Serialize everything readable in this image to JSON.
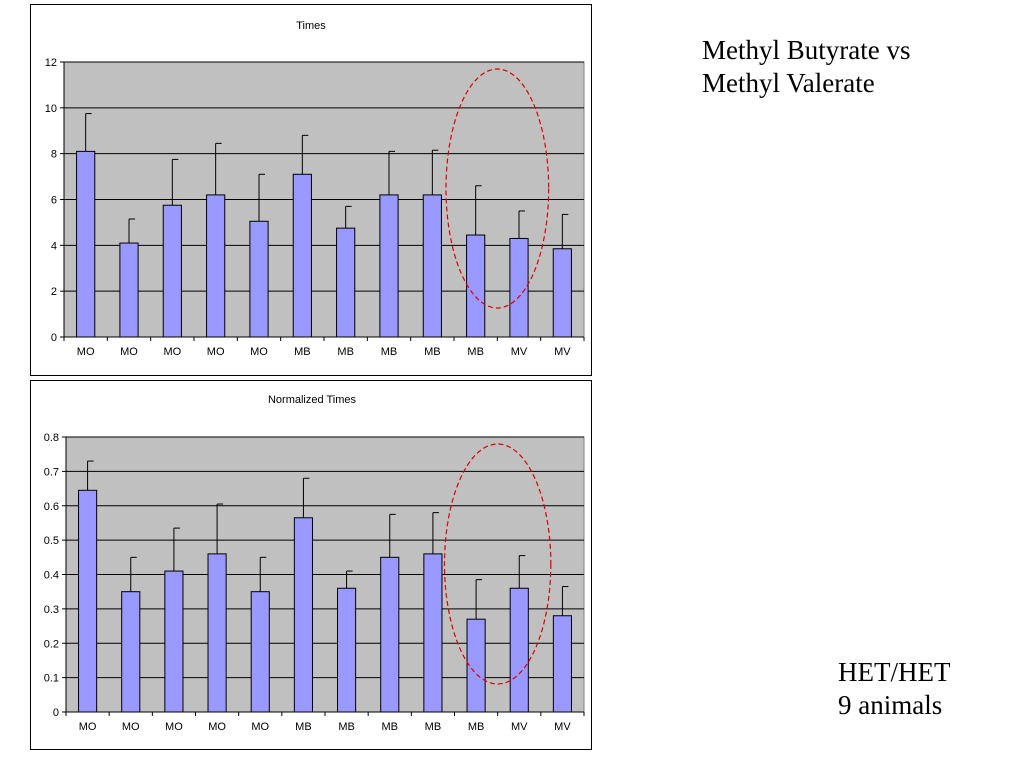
{
  "slide": {
    "title_line1": "Methyl Butyrate vs",
    "title_line2": "Methyl Valerate",
    "note_line1": "HET/HET",
    "note_line2": "9 animals"
  },
  "colors": {
    "bar_fill": "#9999ff",
    "plot_bg": "#c0c0c0",
    "grid": "#000000",
    "highlight": "#dd0000"
  },
  "chart_data": [
    {
      "type": "bar",
      "title": "Times",
      "categories": [
        "MO",
        "MO",
        "MO",
        "MO",
        "MO",
        "MB",
        "MB",
        "MB",
        "MB",
        "MB",
        "MV",
        "MV"
      ],
      "values": [
        8.1,
        4.1,
        5.75,
        6.2,
        5.05,
        7.1,
        4.75,
        6.2,
        6.2,
        4.45,
        4.3,
        3.85
      ],
      "error_upper": [
        1.65,
        1.05,
        2.0,
        2.25,
        2.05,
        1.7,
        0.95,
        1.9,
        1.95,
        2.15,
        1.2,
        1.5
      ],
      "ylim": [
        0,
        12
      ],
      "yticks": [
        0,
        2,
        4,
        6,
        8,
        10,
        12
      ],
      "ytick_labels": [
        "0",
        "2",
        "4",
        "6",
        "8",
        "10",
        "12"
      ],
      "grid": true,
      "xlabel": "",
      "ylabel": "",
      "highlight": {
        "shape": "dashed ellipse",
        "categories_index": [
          9,
          10
        ]
      }
    },
    {
      "type": "bar",
      "title": "Normalized Times",
      "categories": [
        "MO",
        "MO",
        "MO",
        "MO",
        "MO",
        "MB",
        "MB",
        "MB",
        "MB",
        "MB",
        "MV",
        "MV"
      ],
      "values": [
        0.645,
        0.35,
        0.41,
        0.46,
        0.35,
        0.565,
        0.36,
        0.45,
        0.46,
        0.27,
        0.36,
        0.28
      ],
      "error_upper": [
        0.085,
        0.1,
        0.125,
        0.145,
        0.1,
        0.115,
        0.05,
        0.125,
        0.12,
        0.115,
        0.095,
        0.085
      ],
      "ylim": [
        0,
        0.8
      ],
      "yticks": [
        0,
        0.1,
        0.2,
        0.3,
        0.4,
        0.5,
        0.6,
        0.7,
        0.8
      ],
      "ytick_labels": [
        "0",
        "0.1",
        "0.2",
        "0.3",
        "0.4",
        "0.5",
        "0.6",
        "0.7",
        "0.8"
      ],
      "grid": true,
      "xlabel": "",
      "ylabel": "",
      "highlight": {
        "shape": "dashed ellipse",
        "categories_index": [
          9,
          10
        ]
      }
    }
  ]
}
